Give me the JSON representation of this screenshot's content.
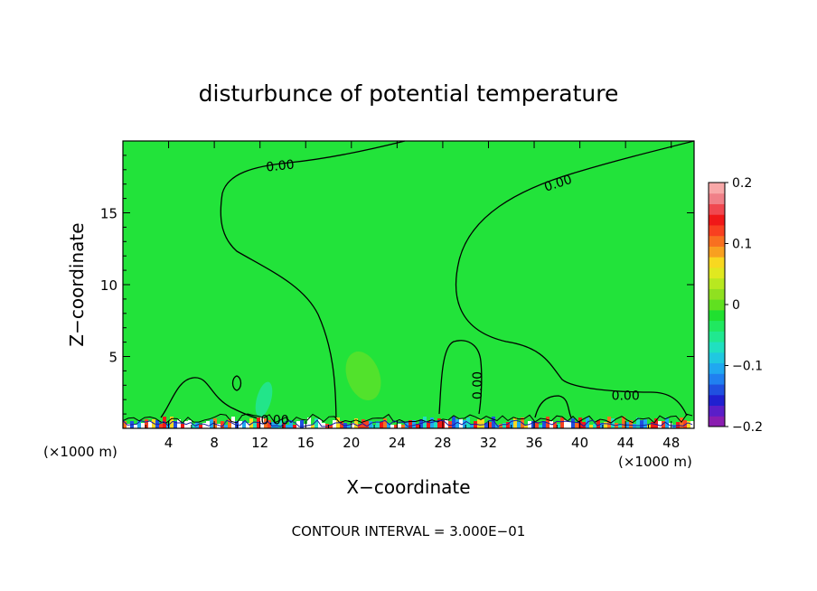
{
  "chart_data": {
    "type": "heatmap",
    "title": "disturbunce of potential temperature",
    "xlabel": "X−coordinate",
    "ylabel": "Z−coordinate",
    "x_unit_left": "(×1000 m)",
    "x_unit_right": "(×1000 m)",
    "footer": "CONTOUR INTERVAL = 3.000E−01",
    "xlim": [
      0,
      50
    ],
    "ylim": [
      0,
      20
    ],
    "x_ticks": [
      4,
      8,
      12,
      16,
      20,
      24,
      28,
      32,
      36,
      40,
      44,
      48
    ],
    "y_ticks": [
      5,
      10,
      15
    ],
    "colorbar": {
      "min": -0.2,
      "max": 0.2,
      "ticks": [
        0.2,
        0.1,
        0,
        -0.1,
        -0.2
      ],
      "tick_labels": [
        "0.2",
        "0.1",
        "0",
        "−0.1",
        "−0.2"
      ],
      "colors": [
        "#8a1db0",
        "#5a1ec8",
        "#2020d0",
        "#2050e0",
        "#2080f0",
        "#20a8f0",
        "#20c8e0",
        "#20e0c0",
        "#20e890",
        "#20e860",
        "#20e030",
        "#60e020",
        "#90e020",
        "#b8e820",
        "#e0e820",
        "#f8d820",
        "#f8a020",
        "#f87020",
        "#f84020",
        "#f01818",
        "#f04850",
        "#f08088",
        "#f8a8a8"
      ]
    },
    "background_color": "#22e33a",
    "contour_labels": [
      {
        "text": "0.00",
        "x": 13.8,
        "y": 18.3
      },
      {
        "text": "0.00",
        "x": 38.2,
        "y": 17.1
      },
      {
        "text": "0.00",
        "x": 31.4,
        "y": 3.3
      },
      {
        "text": "0.00",
        "x": 44.0,
        "y": 2.3
      },
      {
        "text": "0.00",
        "x": 13.3,
        "y": 0.6
      }
    ]
  }
}
